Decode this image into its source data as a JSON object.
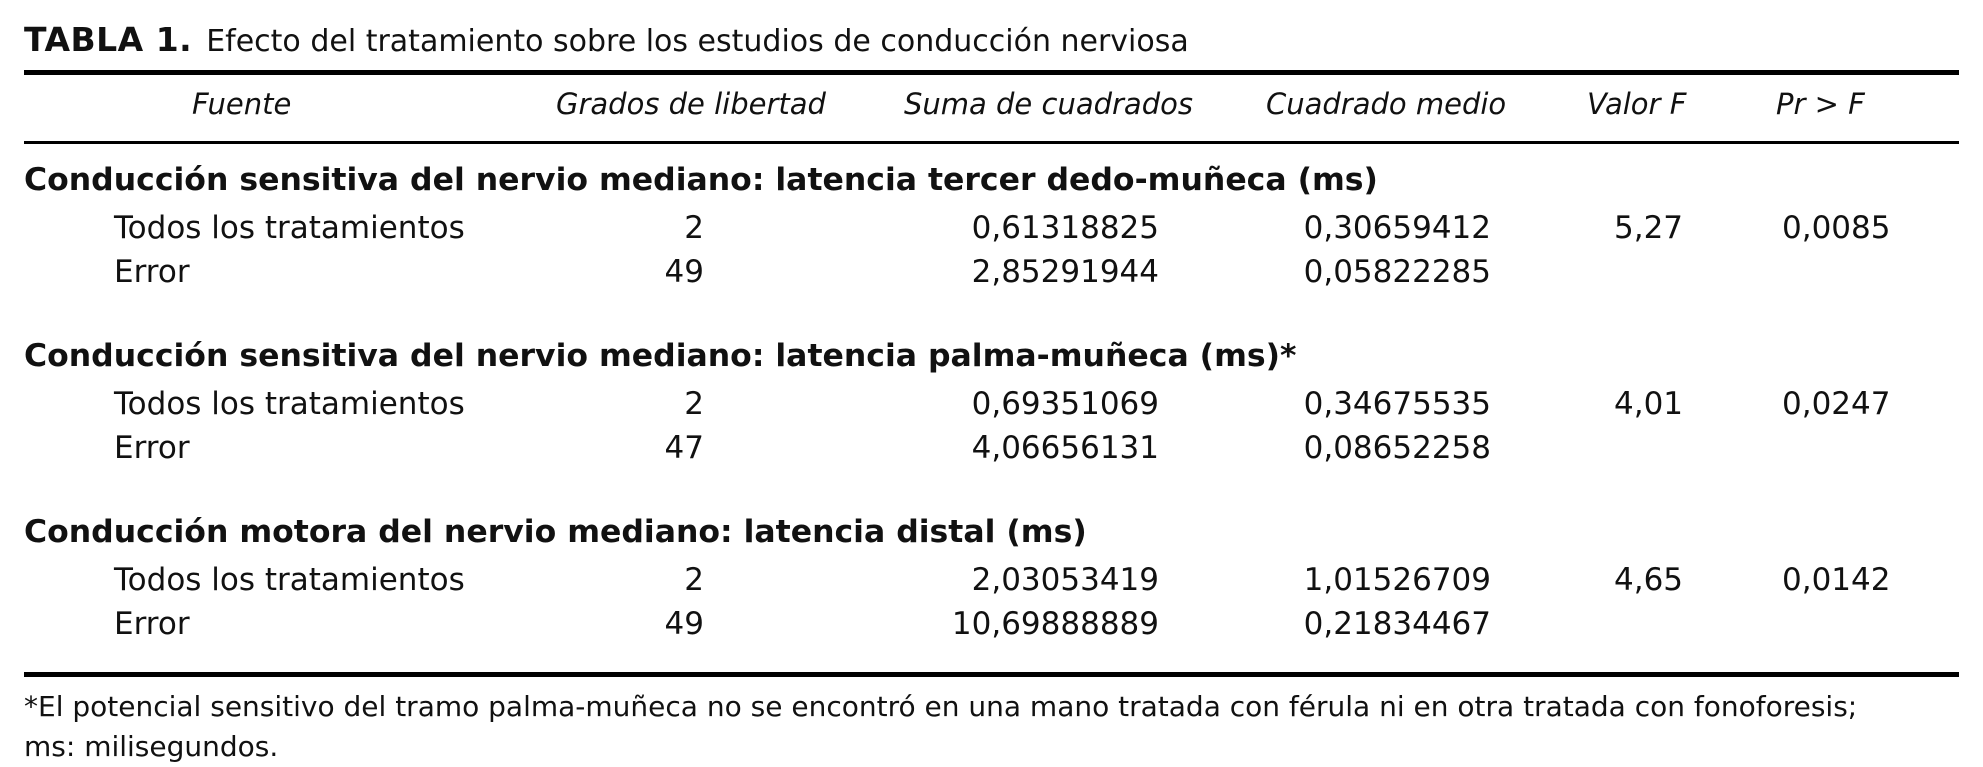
{
  "caption": {
    "label": "TABLA 1.",
    "title": "Efecto del tratamiento sobre los estudios de conducción nerviosa"
  },
  "columns": [
    "Fuente",
    "Grados de libertad",
    "Suma de cuadrados",
    "Cuadrado medio",
    "Valor F",
    "Pr > F"
  ],
  "sections": [
    {
      "title": "Conducción sensitiva del nervio mediano: latencia tercer dedo-muñeca (ms)",
      "rows": [
        {
          "fuente": "Todos los tratamientos",
          "gl": "2",
          "sc": "0,61318825",
          "cm": "0,30659412",
          "f": "5,27",
          "p": "0,0085"
        },
        {
          "fuente": "Error",
          "gl": "49",
          "sc": "2,85291944",
          "cm": "0,05822285",
          "f": "",
          "p": ""
        }
      ]
    },
    {
      "title": "Conducción sensitiva del nervio mediano: latencia palma-muñeca (ms)*",
      "rows": [
        {
          "fuente": "Todos los tratamientos",
          "gl": "2",
          "sc": "0,69351069",
          "cm": "0,34675535",
          "f": "4,01",
          "p": "0,0247"
        },
        {
          "fuente": "Error",
          "gl": "47",
          "sc": "4,06656131",
          "cm": "0,08652258",
          "f": "",
          "p": ""
        }
      ]
    },
    {
      "title": "Conducción motora del nervio mediano: latencia distal (ms)",
      "rows": [
        {
          "fuente": "Todos los tratamientos",
          "gl": "2",
          "sc": "2,03053419",
          "cm": "1,01526709",
          "f": "4,65",
          "p": "0,0142"
        },
        {
          "fuente": "Error",
          "gl": "49",
          "sc": "10,69888889",
          "cm": "0,21834467",
          "f": "",
          "p": ""
        }
      ]
    }
  ],
  "footnote": {
    "line1": "*El potencial sensitivo del tramo palma-muñeca no se encontró en una mano tratada con férula ni en otra tratada con fonoforesis;",
    "line2": "ms: milisegundos."
  }
}
